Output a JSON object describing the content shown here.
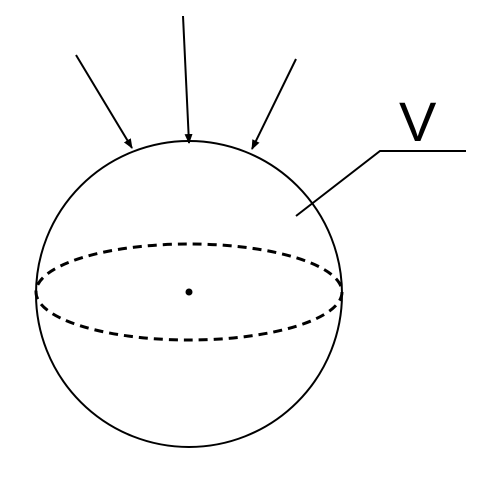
{
  "diagram": {
    "label": "V",
    "arrow_count": 3,
    "colors": {
      "stroke": "#000000",
      "background": "#ffffff"
    }
  }
}
